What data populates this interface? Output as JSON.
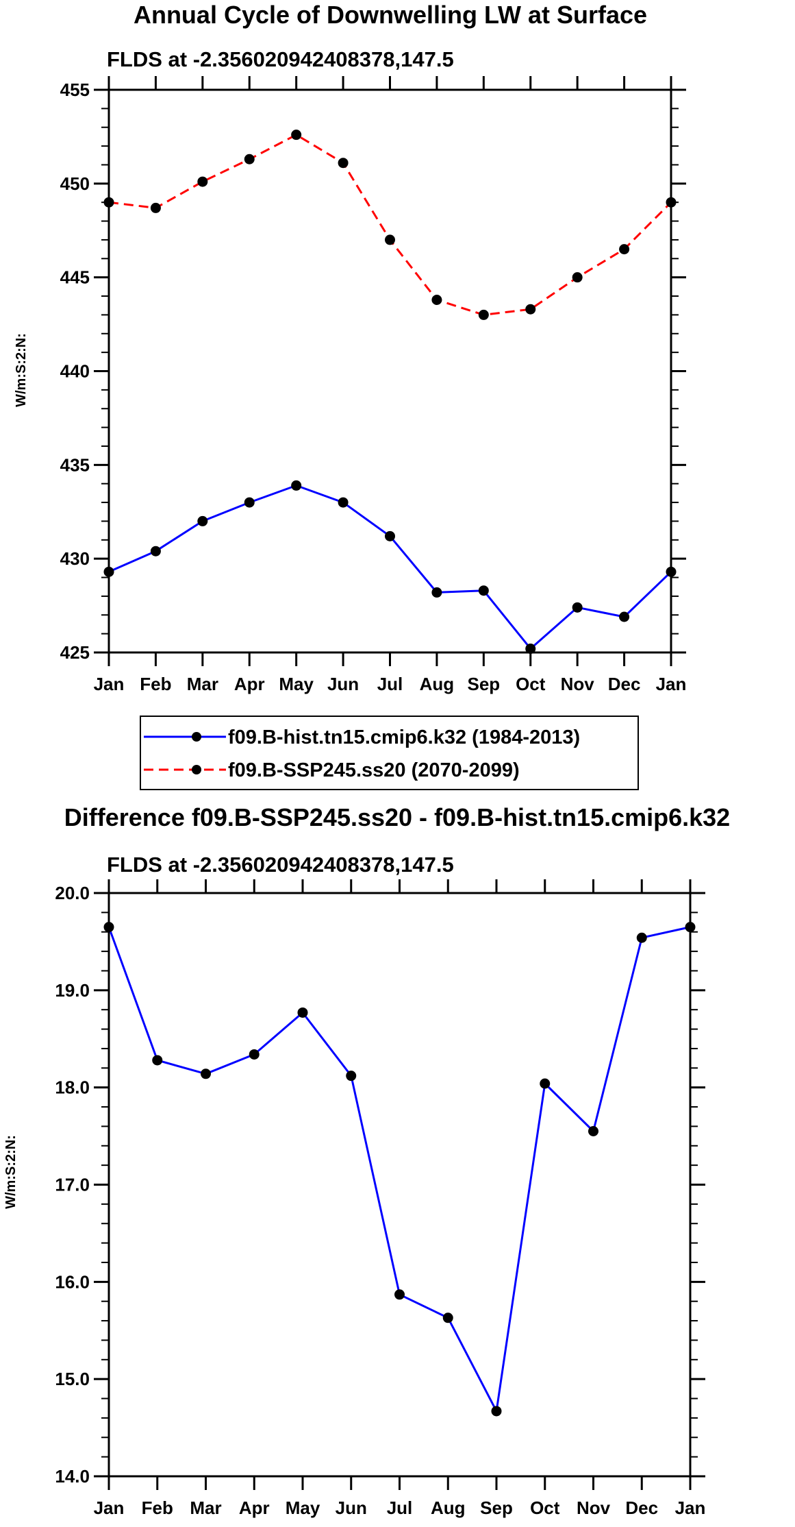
{
  "chart_data": [
    {
      "type": "line",
      "title": "Annual Cycle of Downwelling LW at Surface",
      "subtitle": "FLDS at -2.356020942408378,147.5",
      "ylabel": "W/m:S:2:N:",
      "xlabel": "",
      "categories": [
        "Jan",
        "Feb",
        "Mar",
        "Apr",
        "May",
        "Jun",
        "Jul",
        "Aug",
        "Sep",
        "Oct",
        "Nov",
        "Dec",
        "Jan"
      ],
      "ylim": [
        425,
        455
      ],
      "yticks": [
        "425",
        "430",
        "435",
        "440",
        "445",
        "450",
        "455"
      ],
      "series": [
        {
          "name": "f09.B-hist.tn15.cmip6.k32 (1984-2013)",
          "color": "#0000ff",
          "dash": "solid",
          "values": [
            429.3,
            430.4,
            432.0,
            433.0,
            433.9,
            433.0,
            431.2,
            428.2,
            428.3,
            425.2,
            427.4,
            426.9,
            429.3
          ]
        },
        {
          "name": "f09.B-SSP245.ss20 (2070-2099)",
          "color": "#ff0000",
          "dash": "dashed",
          "values": [
            449.0,
            448.7,
            450.1,
            451.3,
            452.6,
            451.1,
            447.0,
            443.8,
            443.0,
            443.3,
            445.0,
            446.5,
            449.0
          ]
        }
      ],
      "legend": "bottom"
    },
    {
      "type": "line",
      "title": "Difference f09.B-SSP245.ss20 - f09.B-hist.tn15.cmip6.k32",
      "subtitle": "FLDS at -2.356020942408378,147.5",
      "ylabel": "W/m:S:2:N:",
      "xlabel": "",
      "categories": [
        "Jan",
        "Feb",
        "Mar",
        "Apr",
        "May",
        "Jun",
        "Jul",
        "Aug",
        "Sep",
        "Oct",
        "Nov",
        "Dec",
        "Jan"
      ],
      "ylim": [
        14.0,
        20.0
      ],
      "yticks": [
        "14.0",
        "15.0",
        "16.0",
        "17.0",
        "18.0",
        "19.0",
        "20.0"
      ],
      "series": [
        {
          "name": "difference",
          "color": "#0000ff",
          "dash": "solid",
          "values": [
            19.65,
            18.28,
            18.14,
            18.34,
            18.77,
            18.12,
            15.87,
            15.63,
            14.67,
            18.04,
            17.55,
            19.54,
            19.65
          ]
        }
      ]
    }
  ]
}
